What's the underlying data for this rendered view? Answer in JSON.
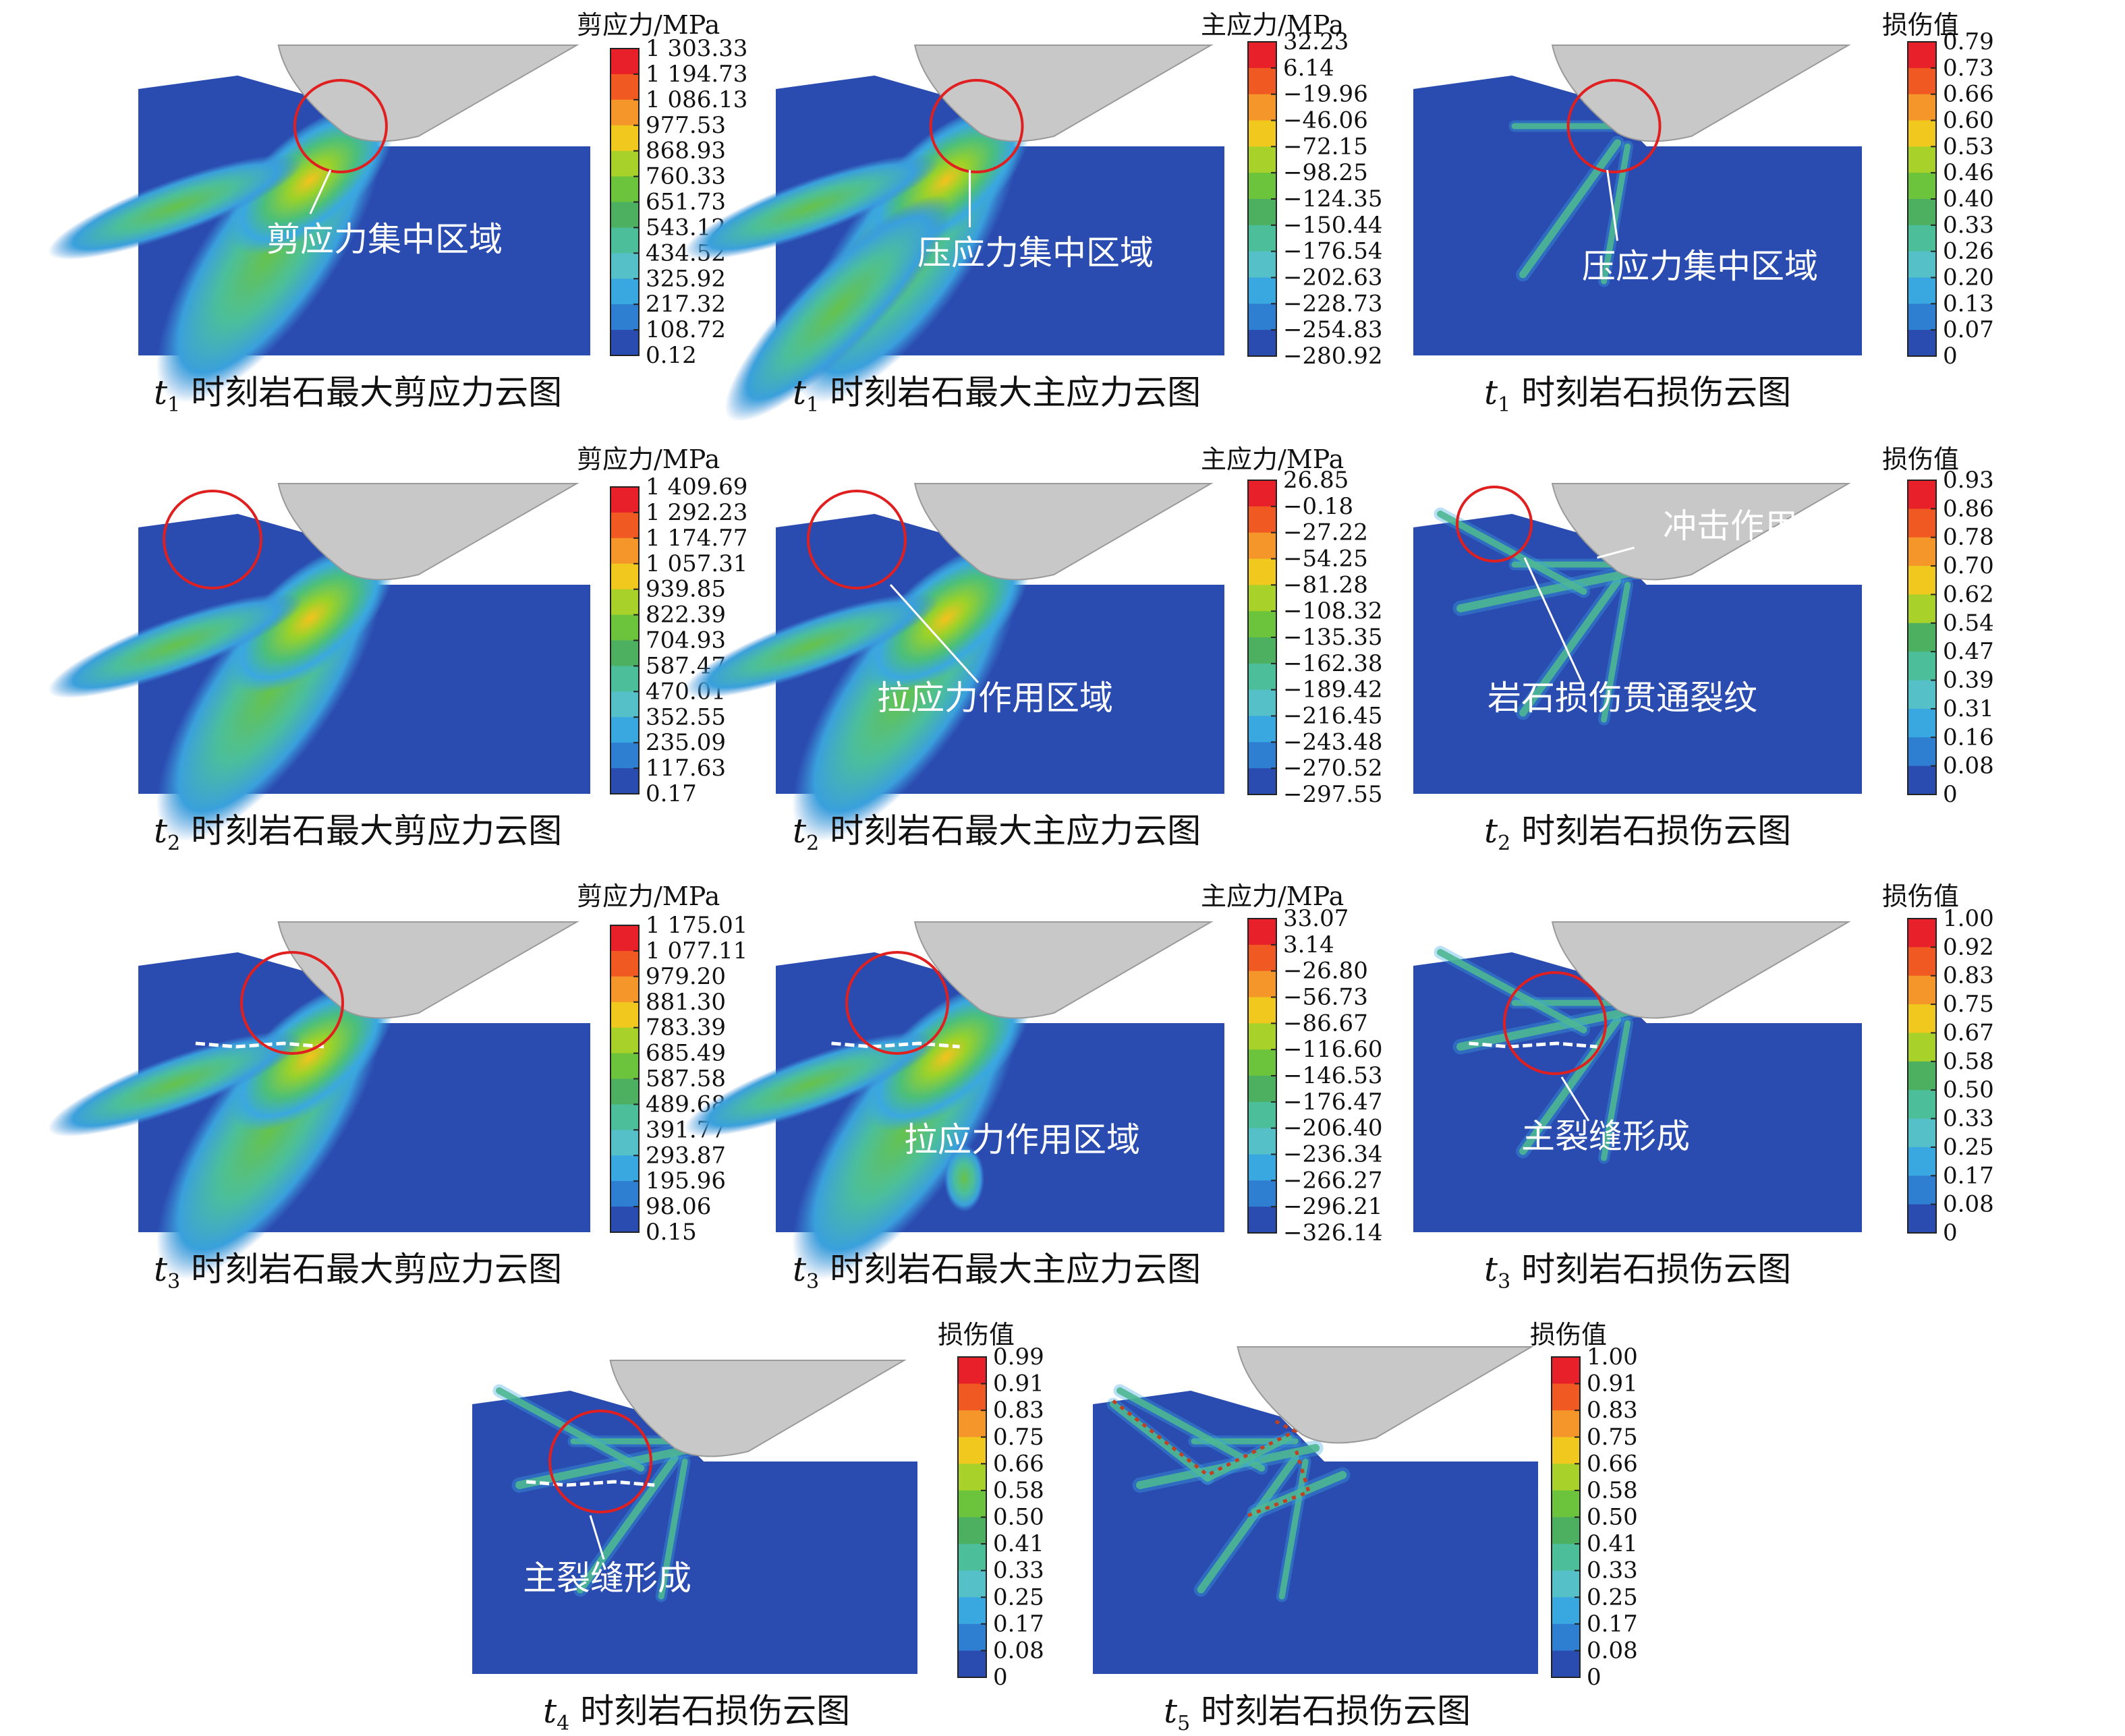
{
  "chart_data": [
    {
      "id": "p1",
      "type": "diagram",
      "legend_title": "剪应力/MPa",
      "caption_var": "t",
      "caption_sub": "1",
      "caption_text": "时刻岩石最大剪应力云图",
      "scale_values": [
        "1 303.33",
        "1 194.73",
        "1 086.13",
        "977.53",
        "868.93",
        "760.33",
        "651.73",
        "543.12",
        "434.52",
        "325.92",
        "217.32",
        "108.72",
        "0.12"
      ],
      "annotation": "剪应力集中区域"
    },
    {
      "id": "p2",
      "type": "diagram",
      "legend_title": "主应力/MPa",
      "caption_var": "t",
      "caption_sub": "1",
      "caption_text": "时刻岩石最大主应力云图",
      "scale_values": [
        "32.23",
        "6.14",
        "−19.96",
        "−46.06",
        "−72.15",
        "−98.25",
        "−124.35",
        "−150.44",
        "−176.54",
        "−202.63",
        "−228.73",
        "−254.83",
        "−280.92"
      ],
      "annotation": "压应力集中区域"
    },
    {
      "id": "p3",
      "type": "diagram",
      "legend_title": "损伤值",
      "caption_var": "t",
      "caption_sub": "1",
      "caption_text": "时刻岩石损伤云图",
      "scale_values": [
        "0.79",
        "0.73",
        "0.66",
        "0.60",
        "0.53",
        "0.46",
        "0.40",
        "0.33",
        "0.26",
        "0.20",
        "0.13",
        "0.07",
        "0"
      ],
      "annotation": "压应力集中区域"
    },
    {
      "id": "p4",
      "type": "diagram",
      "legend_title": "剪应力/MPa",
      "caption_var": "t",
      "caption_sub": "2",
      "caption_text": "时刻岩石最大剪应力云图",
      "scale_values": [
        "1 409.69",
        "1 292.23",
        "1 174.77",
        "1 057.31",
        "939.85",
        "822.39",
        "704.93",
        "587.47",
        "470.01",
        "352.55",
        "235.09",
        "117.63",
        "0.17"
      ],
      "annotation": ""
    },
    {
      "id": "p5",
      "type": "diagram",
      "legend_title": "主应力/MPa",
      "caption_var": "t",
      "caption_sub": "2",
      "caption_text": "时刻岩石最大主应力云图",
      "scale_values": [
        "26.85",
        "−0.18",
        "−27.22",
        "−54.25",
        "−81.28",
        "−108.32",
        "−135.35",
        "−162.38",
        "−189.42",
        "−216.45",
        "−243.48",
        "−270.52",
        "−297.55"
      ],
      "annotation": "拉应力作用区域"
    },
    {
      "id": "p6",
      "type": "diagram",
      "legend_title": "损伤值",
      "caption_var": "t",
      "caption_sub": "2",
      "caption_text": "时刻岩石损伤云图",
      "scale_values": [
        "0.93",
        "0.86",
        "0.78",
        "0.70",
        "0.62",
        "0.54",
        "0.47",
        "0.39",
        "0.31",
        "0.16",
        "0.08",
        "0"
      ],
      "annotation": "岩石损伤贯通裂纹",
      "annotation2": "冲击作用"
    },
    {
      "id": "p7",
      "type": "diagram",
      "legend_title": "剪应力/MPa",
      "caption_var": "t",
      "caption_sub": "3",
      "caption_text": "时刻岩石最大剪应力云图",
      "scale_values": [
        "1 175.01",
        "1 077.11",
        "979.20",
        "881.30",
        "783.39",
        "685.49",
        "587.58",
        "489.68",
        "391.77",
        "293.87",
        "195.96",
        "98.06",
        "0.15"
      ],
      "annotation": ""
    },
    {
      "id": "p8",
      "type": "diagram",
      "legend_title": "主应力/MPa",
      "caption_var": "t",
      "caption_sub": "3",
      "caption_text": "时刻岩石最大主应力云图",
      "scale_values": [
        "33.07",
        "3.14",
        "−26.80",
        "−56.73",
        "−86.67",
        "−116.60",
        "−146.53",
        "−176.47",
        "−206.40",
        "−236.34",
        "−266.27",
        "−296.21",
        "−326.14"
      ],
      "annotation": "拉应力作用区域"
    },
    {
      "id": "p9",
      "type": "diagram",
      "legend_title": "损伤值",
      "caption_var": "t",
      "caption_sub": "3",
      "caption_text": "时刻岩石损伤云图",
      "scale_values": [
        "1.00",
        "0.92",
        "0.83",
        "0.75",
        "0.67",
        "0.58",
        "0.50",
        "0.33",
        "0.25",
        "0.17",
        "0.08",
        "0"
      ],
      "annotation": "主裂缝形成"
    },
    {
      "id": "p10",
      "type": "diagram",
      "legend_title": "损伤值",
      "caption_var": "t",
      "caption_sub": "4",
      "caption_text": "时刻岩石损伤云图",
      "scale_values": [
        "0.99",
        "0.91",
        "0.83",
        "0.75",
        "0.66",
        "0.58",
        "0.50",
        "0.41",
        "0.33",
        "0.25",
        "0.17",
        "0.08",
        "0"
      ],
      "annotation": "主裂缝形成"
    },
    {
      "id": "p11",
      "type": "diagram",
      "legend_title": "损伤值",
      "caption_var": "t",
      "caption_sub": "5",
      "caption_text": "时刻岩石损伤云图",
      "scale_values": [
        "1.00",
        "0.91",
        "0.83",
        "0.75",
        "0.66",
        "0.58",
        "0.50",
        "0.41",
        "0.33",
        "0.25",
        "0.17",
        "0.08",
        "0"
      ],
      "annotation": ""
    }
  ],
  "colors": {
    "background": "#2a4bb0",
    "tool": "#c8c8c8",
    "circle": "#e02020",
    "annotation": "#ffffff",
    "colormap": [
      "#e8202a",
      "#f05a22",
      "#f5962a",
      "#f0c81e",
      "#a8d22a",
      "#6cc43c",
      "#4cb060",
      "#4cbf9a",
      "#56c0c8",
      "#3aa8e0",
      "#2e7ed2",
      "#2a4bb0"
    ]
  }
}
